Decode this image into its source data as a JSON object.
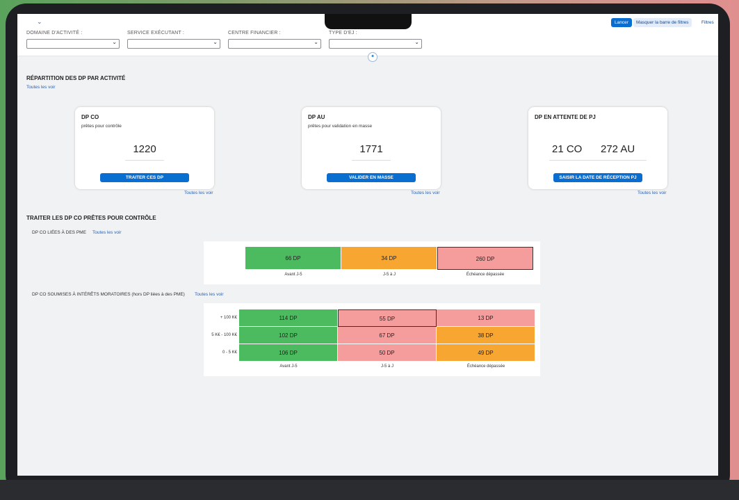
{
  "filters": [
    {
      "label": "DOMAINE D'ACTIVITÉ :",
      "value": ""
    },
    {
      "label": "SERVICE EXÉCUTANT :",
      "value": ""
    },
    {
      "label": "CENTRE FINANCIER :",
      "value": ""
    },
    {
      "label": "TYPE D'EJ :",
      "value": ""
    }
  ],
  "toolbar": {
    "lancer": "Lancer",
    "masquer": "Masquer la barre de filtres",
    "filtres": "Filtres"
  },
  "section1": {
    "title": "RÉPARTITION DES DP PAR ACTIVITÉ",
    "see_all": "Toutes les voir",
    "cards": [
      {
        "title": "DP CO",
        "subtitle": "prêtes pour contrôle",
        "value": "1220",
        "button": "TRAITER CES DP",
        "link": "Toutes les voir"
      },
      {
        "title": "DP AU",
        "subtitle": "prêtes pour validation en masse",
        "value": "1771",
        "button": "VALIDER EN MASSE",
        "link": "Toutes les voir"
      },
      {
        "title": "DP EN ATTENTE DE PJ",
        "subtitle": "",
        "value_co": "21 CO",
        "value_au": "272 AU",
        "button": "SAISIR LA DATE DE RÉCEPTION PJ",
        "link": "Toutes les voir"
      }
    ]
  },
  "section2": {
    "title": "TRAITER LES DP CO PRÊTES POUR CONTRÔLE",
    "pme_label": "DP CO LIÉES À DES PME",
    "pme_link": "Toutes les voir",
    "moratoires_label": "DP CO SOUMISES À INTÉRÊTS MORATOIRES (hors DP liées à des PME)",
    "moratoires_link": "Toutes les voir"
  },
  "chart_data": [
    {
      "type": "heatmap",
      "title": "DP CO LIÉES À DES PME",
      "x_categories": [
        "Avant J-5",
        "J-5 à J",
        "Échéance dépassée"
      ],
      "y_categories": [
        ""
      ],
      "values": [
        [
          66,
          34,
          260
        ]
      ],
      "cell_labels": [
        [
          "66 DP",
          "34 DP",
          "260 DP"
        ]
      ],
      "colors": [
        [
          "#4cbb5f",
          "#f7a631",
          "#f59c9c"
        ]
      ]
    },
    {
      "type": "heatmap",
      "title": "DP CO SOUMISES À INTÉRÊTS MORATOIRES (hors DP liées à des PME)",
      "x_categories": [
        "Avant J-5",
        "J-5 à J",
        "Échéance dépassée"
      ],
      "y_categories": [
        "+ 100 K€",
        "5 K€ - 100 K€",
        "0 - 5 K€"
      ],
      "values": [
        [
          114,
          55,
          13
        ],
        [
          102,
          67,
          38
        ],
        [
          106,
          50,
          49
        ]
      ],
      "cell_labels": [
        [
          "114 DP",
          "55 DP",
          "13 DP"
        ],
        [
          "102 DP",
          "67 DP",
          "38 DP"
        ],
        [
          "106 DP",
          "50 DP",
          "49 DP"
        ]
      ],
      "colors": [
        [
          "#4cbb5f",
          "#f59c9c",
          "#f59c9c"
        ],
        [
          "#4cbb5f",
          "#f59c9c",
          "#f7a631"
        ],
        [
          "#4cbb5f",
          "#f59c9c",
          "#f7a631"
        ]
      ]
    }
  ]
}
